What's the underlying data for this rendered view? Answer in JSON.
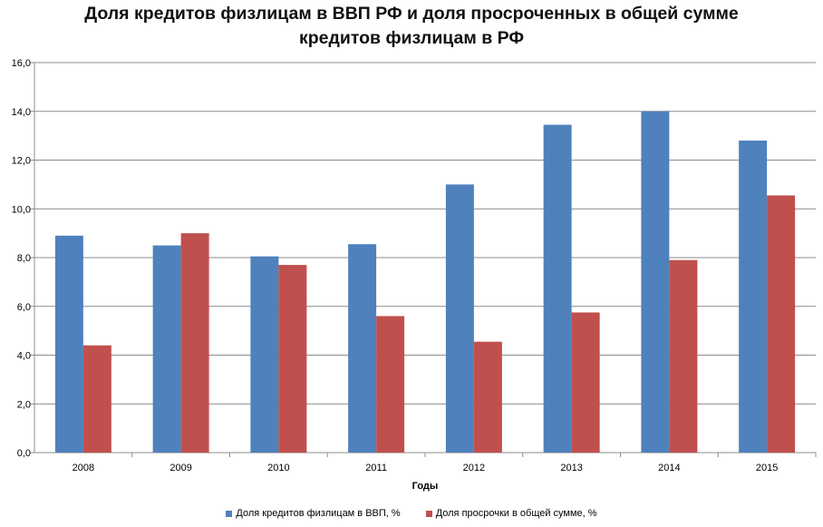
{
  "chart_data": {
    "type": "bar",
    "title_lines": [
      "Доля кредитов физлицам в ВВП РФ и доля просроченных в общей сумме",
      "кредитов физлицам в РФ"
    ],
    "xlabel": "Годы",
    "ylabel": "",
    "categories": [
      "2008",
      "2009",
      "2010",
      "2011",
      "2012",
      "2013",
      "2014",
      "2015"
    ],
    "ylim": [
      0,
      16
    ],
    "yticks": [
      "0,0",
      "2,0",
      "4,0",
      "6,0",
      "8,0",
      "10,0",
      "12,0",
      "14,0",
      "16,0"
    ],
    "grid": true,
    "legend_position": "bottom",
    "series": [
      {
        "name": "Доля кредитов физлицам в ВВП, %",
        "color": "#4F81BD",
        "values": [
          8.9,
          8.5,
          8.05,
          8.55,
          11.0,
          13.45,
          14.0,
          12.8
        ]
      },
      {
        "name": "Доля просрочки в общей сумме, %",
        "color": "#C0504D",
        "values": [
          4.4,
          9.0,
          7.7,
          5.6,
          4.55,
          5.75,
          7.9,
          10.55
        ]
      }
    ]
  }
}
